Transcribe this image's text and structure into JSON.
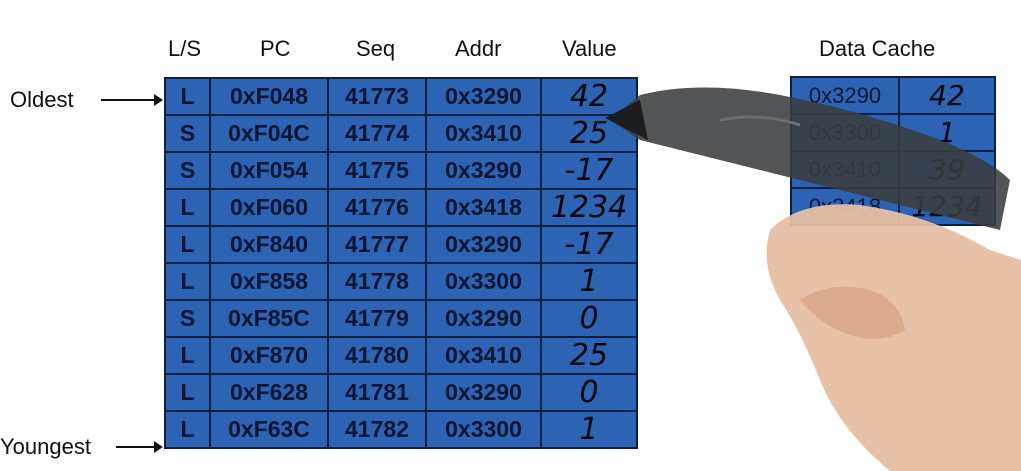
{
  "headers": {
    "ls": "L/S",
    "pc": "PC",
    "seq": "Seq",
    "addr": "Addr",
    "value": "Value",
    "cache": "Data Cache"
  },
  "labels": {
    "oldest": "Oldest",
    "youngest": "Youngest"
  },
  "lsq_rows": [
    [
      "L",
      "0xF048",
      "41773",
      "0x3290",
      "42"
    ],
    [
      "S",
      "0xF04C",
      "41774",
      "0x3410",
      "25"
    ],
    [
      "S",
      "0xF054",
      "41775",
      "0x3290",
      "-17"
    ],
    [
      "L",
      "0xF060",
      "41776",
      "0x3418",
      "1234"
    ],
    [
      "L",
      "0xF840",
      "41777",
      "0x3290",
      "-17"
    ],
    [
      "L",
      "0xF858",
      "41778",
      "0x3300",
      "1"
    ],
    [
      "S",
      "0xF85C",
      "41779",
      "0x3290",
      "0"
    ],
    [
      "L",
      "0xF870",
      "41780",
      "0x3410",
      "25"
    ],
    [
      "L",
      "0xF628",
      "41781",
      "0x3290",
      "0"
    ],
    [
      "L",
      "0xF63C",
      "41782",
      "0x3300",
      "1"
    ]
  ],
  "cache_rows": [
    [
      "0x3290",
      "42"
    ],
    [
      "0x3300",
      "1"
    ],
    [
      "0x3410",
      "39"
    ],
    [
      "0x3418",
      "1234"
    ]
  ],
  "colors": {
    "cell_fill": "#2d63b3",
    "grid": "#0b1f47"
  }
}
